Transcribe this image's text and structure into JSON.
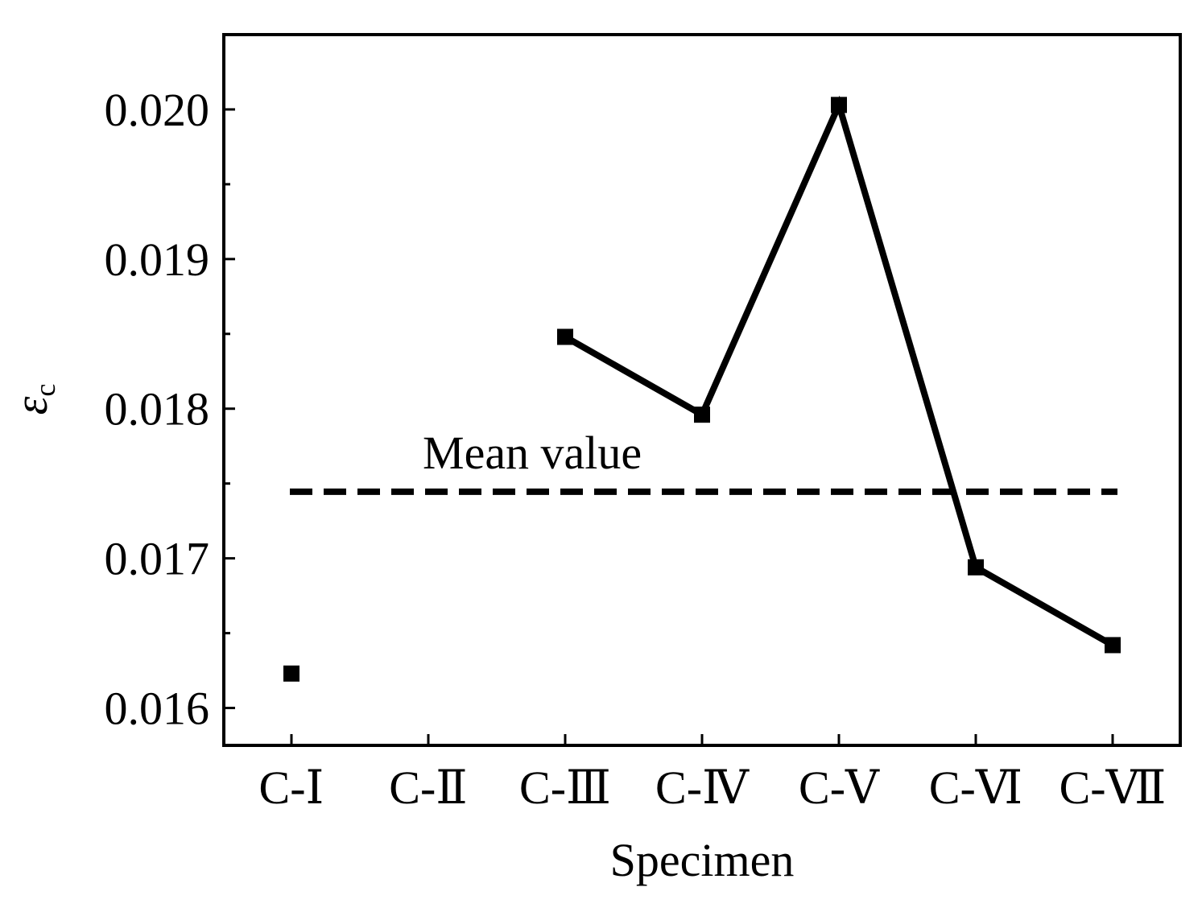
{
  "chart_data": {
    "type": "line",
    "title": "",
    "xlabel": "Specimen",
    "ylabel_main": "ε",
    "ylabel_sub": "c",
    "categories": [
      "C-Ⅰ",
      "C-Ⅱ",
      "C-Ⅲ",
      "C-Ⅳ",
      "C-Ⅴ",
      "C-Ⅵ",
      "C-Ⅶ"
    ],
    "ylim": [
      0.01575,
      0.0205
    ],
    "y_ticks": [
      "0.016",
      "0.017",
      "0.018",
      "0.019",
      "0.020"
    ],
    "y_tick_values": [
      0.016,
      0.017,
      0.018,
      0.019,
      0.02
    ],
    "y_minor_tick_values": [
      0.0165,
      0.0175,
      0.0185,
      0.0195
    ],
    "grid": false,
    "series": [
      {
        "name": "εc",
        "values": [
          0.01623,
          null,
          0.01848,
          0.01796,
          0.02003,
          0.01694,
          0.01642
        ]
      }
    ],
    "mean_value": 0.017445,
    "mean_label": "Mean value"
  }
}
